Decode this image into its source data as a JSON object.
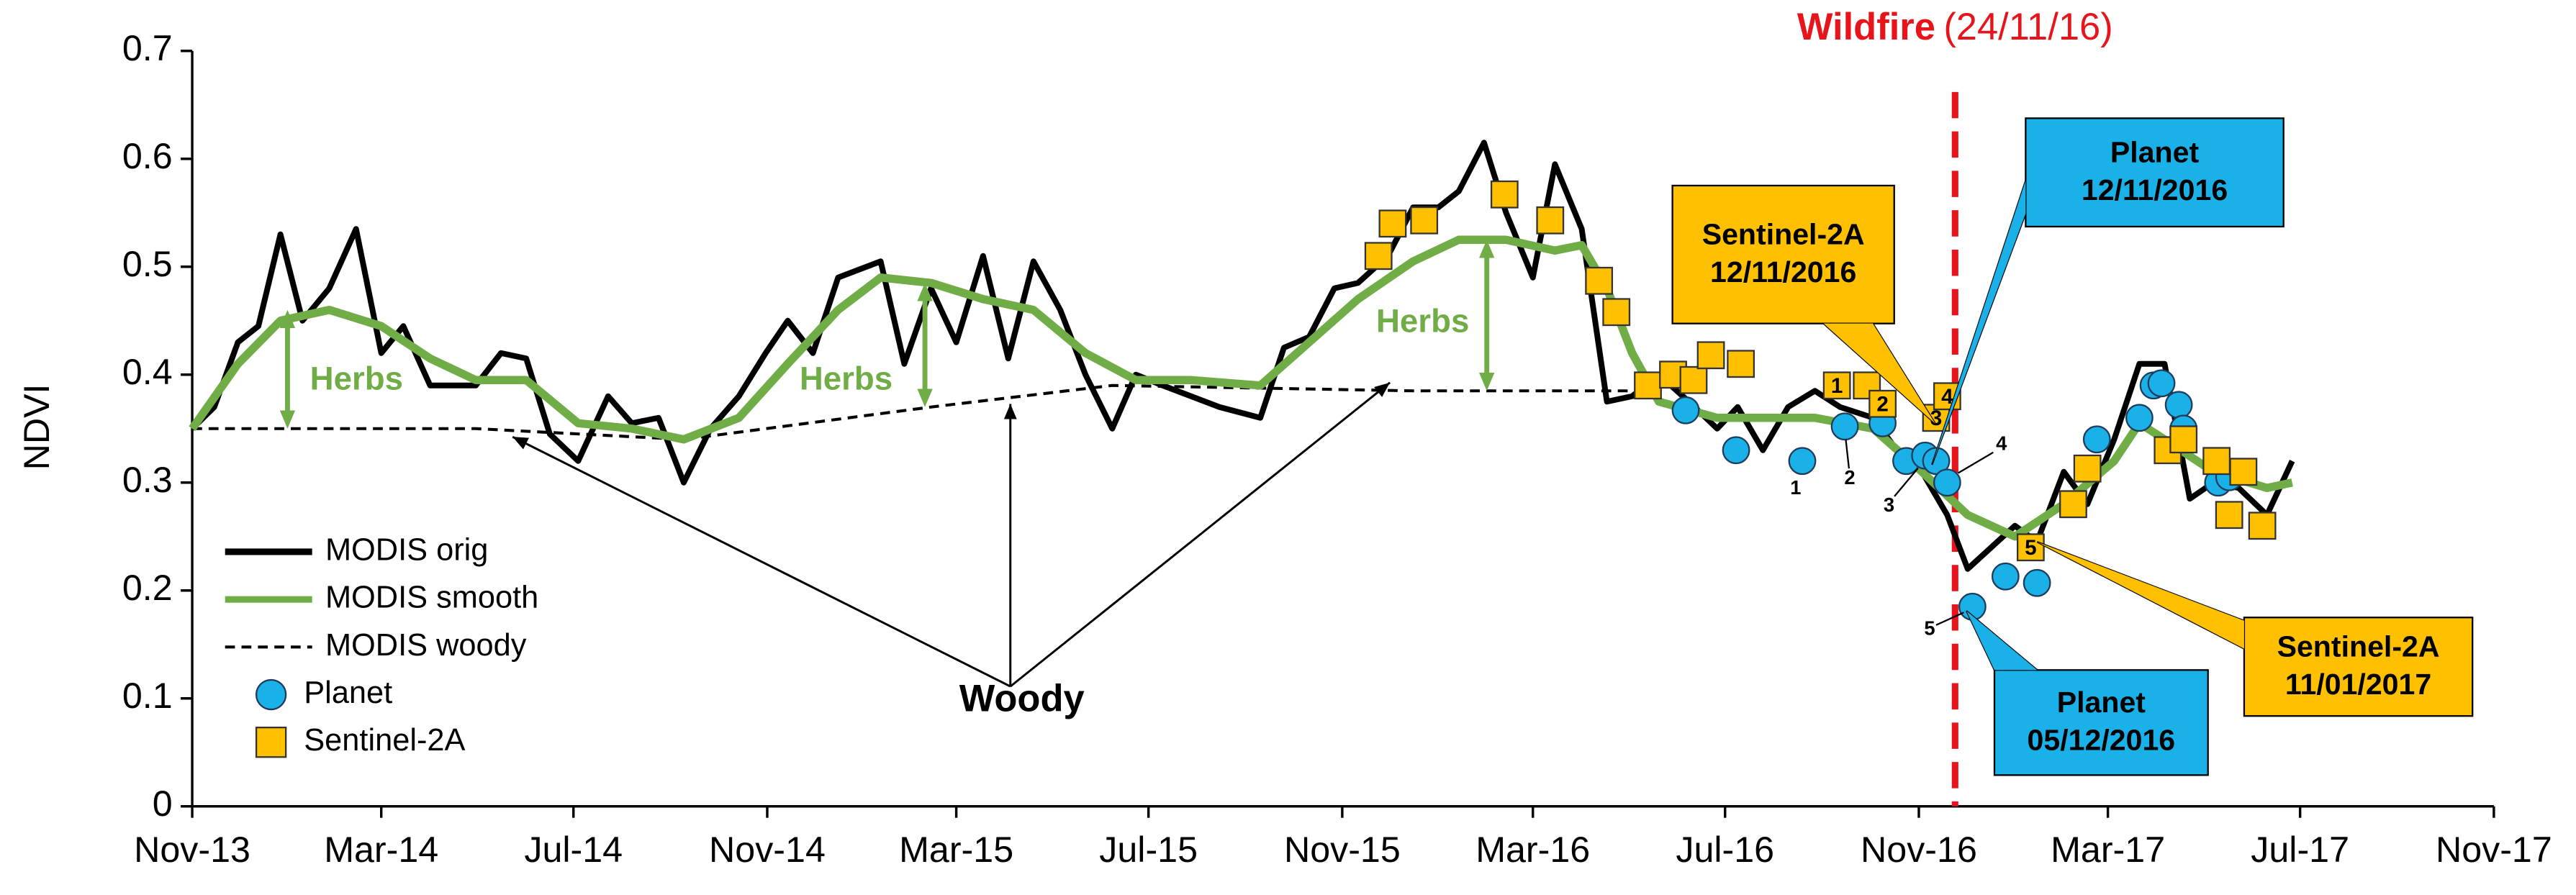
{
  "chart_data": {
    "type": "line",
    "y_label": "NDVI",
    "xlim": [
      "2013-11-01",
      "2017-11-01"
    ],
    "xticks": [
      {
        "value": "2013-11-01",
        "label": "Nov-13"
      },
      {
        "value": "2014-03-01",
        "label": "Mar-14"
      },
      {
        "value": "2014-07-01",
        "label": "Jul-14"
      },
      {
        "value": "2014-11-01",
        "label": "Nov-14"
      },
      {
        "value": "2015-03-01",
        "label": "Mar-15"
      },
      {
        "value": "2015-07-01",
        "label": "Jul-15"
      },
      {
        "value": "2015-11-01",
        "label": "Nov-15"
      },
      {
        "value": "2016-03-01",
        "label": "Mar-16"
      },
      {
        "value": "2016-07-01",
        "label": "Jul-16"
      },
      {
        "value": "2016-11-01",
        "label": "Nov-16"
      },
      {
        "value": "2017-03-01",
        "label": "Mar-17"
      },
      {
        "value": "2017-07-01",
        "label": "Jul-17"
      },
      {
        "value": "2017-11-01",
        "label": "Nov-17"
      }
    ],
    "ylim": [
      0,
      0.7
    ],
    "yticks": [
      0,
      0.1,
      0.2,
      0.3,
      0.4,
      0.5,
      0.6,
      0.7
    ],
    "legend": "lower left",
    "series": [
      {
        "name": "MODIS orig",
        "type": "line",
        "color": "#000000",
        "x": [
          "2013-11-01",
          "2013-11-15",
          "2013-11-30",
          "2013-12-13",
          "2013-12-27",
          "2014-01-10",
          "2014-01-27",
          "2014-02-13",
          "2014-03-01",
          "2014-03-15",
          "2014-04-01",
          "2014-04-30",
          "2014-05-16",
          "2014-06-01",
          "2014-06-16",
          "2014-07-04",
          "2014-07-23",
          "2014-08-07",
          "2014-08-24",
          "2014-09-09",
          "2014-09-26",
          "2014-10-14",
          "2014-10-31",
          "2014-11-14",
          "2014-11-30",
          "2014-12-16",
          "2015-01-12",
          "2015-01-27",
          "2015-02-13",
          "2015-03-01",
          "2015-03-18",
          "2015-04-03",
          "2015-04-19",
          "2015-05-06",
          "2015-05-22",
          "2015-06-08",
          "2015-06-23",
          "2015-07-10",
          "2015-07-28",
          "2015-08-15",
          "2015-09-10",
          "2015-09-25",
          "2015-10-11",
          "2015-10-27",
          "2015-11-11",
          "2015-11-30",
          "2015-12-16",
          "2016-01-01",
          "2016-01-14",
          "2016-01-30",
          "2016-02-13",
          "2016-03-01",
          "2016-03-15",
          "2016-04-01",
          "2016-04-17",
          "2016-05-03",
          "2016-05-20",
          "2016-06-08",
          "2016-06-26",
          "2016-07-09",
          "2016-07-25",
          "2016-08-10",
          "2016-08-27",
          "2016-09-12",
          "2016-10-03",
          "2016-10-18",
          "2016-11-03",
          "2016-11-19",
          "2016-12-02",
          "2016-12-17",
          "2017-01-01",
          "2017-01-15",
          "2017-02-01",
          "2017-02-16",
          "2017-03-05",
          "2017-03-21",
          "2017-04-06",
          "2017-04-22",
          "2017-05-07",
          "2017-05-23",
          "2017-06-10",
          "2017-06-26"
        ],
        "values": [
          0.35,
          0.37,
          0.43,
          0.445,
          0.53,
          0.45,
          0.48,
          0.535,
          0.42,
          0.445,
          0.39,
          0.39,
          0.42,
          0.415,
          0.345,
          0.32,
          0.38,
          0.355,
          0.36,
          0.3,
          0.35,
          0.38,
          0.42,
          0.45,
          0.42,
          0.49,
          0.505,
          0.41,
          0.48,
          0.43,
          0.51,
          0.415,
          0.505,
          0.46,
          0.4,
          0.35,
          0.4,
          0.39,
          0.38,
          0.37,
          0.36,
          0.425,
          0.435,
          0.48,
          0.485,
          0.51,
          0.555,
          0.555,
          0.57,
          0.615,
          0.55,
          0.49,
          0.595,
          0.535,
          0.375,
          0.38,
          0.4,
          0.375,
          0.35,
          0.37,
          0.33,
          0.37,
          0.385,
          0.37,
          0.36,
          0.33,
          0.31,
          0.27,
          0.22,
          0.24,
          0.26,
          0.245,
          0.31,
          0.28,
          0.34,
          0.41,
          0.41,
          0.285,
          0.3,
          0.295,
          0.27,
          0.32
        ]
      },
      {
        "name": "MODIS smooth",
        "type": "line",
        "color": "#70ad47",
        "x": [
          "2013-11-01",
          "2013-11-30",
          "2013-12-27",
          "2014-01-27",
          "2014-03-01",
          "2014-04-01",
          "2014-04-30",
          "2014-06-01",
          "2014-07-04",
          "2014-08-07",
          "2014-09-09",
          "2014-10-14",
          "2014-11-14",
          "2014-12-16",
          "2015-01-12",
          "2015-02-13",
          "2015-03-18",
          "2015-04-19",
          "2015-05-22",
          "2015-06-23",
          "2015-07-28",
          "2015-09-10",
          "2015-10-11",
          "2015-11-11",
          "2015-12-16",
          "2016-01-14",
          "2016-02-13",
          "2016-03-15",
          "2016-04-01",
          "2016-04-17",
          "2016-05-03",
          "2016-05-20",
          "2016-06-26",
          "2016-07-25",
          "2016-08-27",
          "2016-10-03",
          "2016-11-03",
          "2016-12-02",
          "2017-01-01",
          "2017-02-01",
          "2017-03-05",
          "2017-03-21",
          "2017-04-06",
          "2017-05-07",
          "2017-06-10",
          "2017-06-26"
        ],
        "values": [
          0.35,
          0.41,
          0.45,
          0.46,
          0.445,
          0.415,
          0.395,
          0.395,
          0.355,
          0.35,
          0.34,
          0.36,
          0.41,
          0.46,
          0.49,
          0.485,
          0.47,
          0.46,
          0.42,
          0.395,
          0.395,
          0.39,
          0.43,
          0.47,
          0.505,
          0.525,
          0.525,
          0.515,
          0.52,
          0.48,
          0.42,
          0.375,
          0.36,
          0.36,
          0.36,
          0.35,
          0.31,
          0.27,
          0.25,
          0.28,
          0.32,
          0.355,
          0.34,
          0.31,
          0.295,
          0.3
        ]
      },
      {
        "name": "MODIS woody",
        "type": "dashed",
        "color": "#000000",
        "x": [
          "2013-11-01",
          "2014-04-30",
          "2014-09-09",
          "2015-02-13",
          "2015-06-08",
          "2015-12-16",
          "2016-05-20"
        ],
        "values": [
          0.35,
          0.35,
          0.34,
          0.37,
          0.39,
          0.385,
          0.385
        ]
      },
      {
        "name": "Planet",
        "type": "circle",
        "color": "#1ab0e8",
        "x": [
          "2016-06-06",
          "2016-07-08",
          "2016-08-19",
          "2016-09-15",
          "2016-10-09",
          "2016-10-24",
          "2016-11-05",
          "2016-11-12",
          "2016-11-19",
          "2016-12-05",
          "2016-12-26",
          "2017-01-15",
          "2017-02-22",
          "2017-03-21",
          "2017-03-30",
          "2017-04-04",
          "2017-04-15",
          "2017-04-18",
          "2017-05-10",
          "2017-05-17"
        ],
        "values": [
          0.367,
          0.33,
          0.32,
          0.352,
          0.355,
          0.32,
          0.325,
          0.32,
          0.3,
          0.185,
          0.213,
          0.207,
          0.34,
          0.36,
          0.39,
          0.392,
          0.372,
          0.35,
          0.3,
          0.305
        ],
        "labels": [
          null,
          null,
          "1",
          "2",
          null,
          null,
          "3",
          null,
          "4",
          "5",
          null,
          null,
          null,
          null,
          null,
          null,
          null,
          null,
          null,
          null
        ]
      },
      {
        "name": "Sentinel-2A",
        "type": "square",
        "color": "#ffc000",
        "x": [
          "2015-11-24",
          "2015-12-03",
          "2015-12-23",
          "2016-02-12",
          "2016-03-12",
          "2016-04-12",
          "2016-04-23",
          "2016-05-13",
          "2016-05-29",
          "2016-06-11",
          "2016-06-22",
          "2016-07-11",
          "2016-09-10",
          "2016-09-29",
          "2016-10-09",
          "2016-11-12",
          "2016-11-19",
          "2017-01-11",
          "2017-02-07",
          "2017-02-16",
          "2017-04-08",
          "2017-04-18",
          "2017-05-09",
          "2017-05-17",
          "2017-05-26",
          "2017-06-07"
        ],
        "values": [
          0.51,
          0.54,
          0.543,
          0.567,
          0.543,
          0.487,
          0.458,
          0.39,
          0.4,
          0.395,
          0.418,
          0.41,
          0.39,
          0.39,
          0.373,
          0.36,
          0.38,
          0.24,
          0.28,
          0.313,
          0.33,
          0.34,
          0.32,
          0.27,
          0.31,
          0.26
        ],
        "labels": [
          null,
          null,
          null,
          null,
          null,
          null,
          null,
          null,
          null,
          null,
          null,
          null,
          "1",
          null,
          "2",
          "3",
          "4",
          "5",
          null,
          null,
          null,
          null,
          null,
          null,
          null,
          null
        ]
      }
    ],
    "annotations": {
      "wildfire": {
        "label": "Wildfire",
        "date_label": "(24/11/16)",
        "x": "2016-11-24"
      },
      "herbs": [
        "Herbs",
        "Herbs",
        "Herbs"
      ],
      "woody": "Woody",
      "callouts": [
        {
          "title": "Sentinel-2A",
          "date": "12/11/2016"
        },
        {
          "title": "Planet",
          "date": "12/11/2016"
        },
        {
          "title": "Planet",
          "date": "05/12/2016"
        },
        {
          "title": "Sentinel-2A",
          "date": "11/01/2017"
        }
      ]
    }
  }
}
